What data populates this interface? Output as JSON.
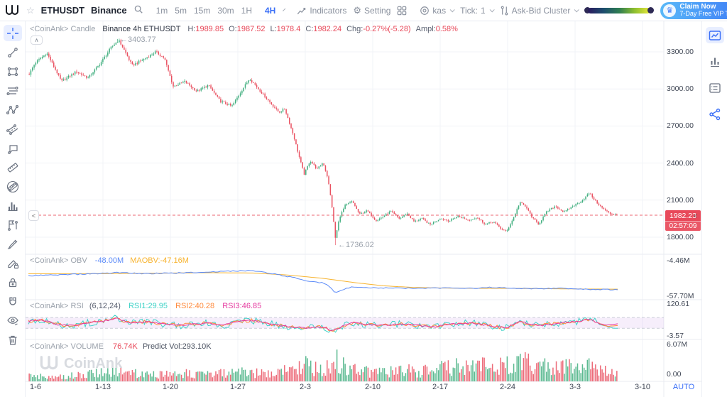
{
  "topbar": {
    "symbol": "ETHUSDT",
    "exchange": "Binance",
    "timeframes": [
      "1m",
      "5m",
      "15m",
      "30m",
      "1H"
    ],
    "active_timeframe": "4H",
    "indicators_label": "Indicators",
    "setting_label": "Setting",
    "overlay_symbol": "kas",
    "tick_label": "Tick:",
    "tick_value": "1",
    "cluster_label": "Ask-Bid Cluster",
    "claim_title": "Claim Now",
    "claim_subtitle": "7-Day Free VIP Trial"
  },
  "legend": {
    "source": "<CoinAnk> Candle",
    "market": "Binance 4h ETHUSDT",
    "items": [
      [
        "H:",
        "1989.85"
      ],
      [
        "O:",
        "1987.52"
      ],
      [
        "L:",
        "1978.4"
      ],
      [
        "C:",
        "1982.24"
      ],
      [
        "Chg:",
        "-0.27%(-5.28)"
      ],
      [
        "Ampl:",
        "0.58%"
      ]
    ]
  },
  "panes": {
    "obv": {
      "title": "<CoinAnk> OBV",
      "value": "-48.00M",
      "ma": "MAOBV:-47.16M",
      "axis": [
        "-4.46M",
        "-57.70M"
      ]
    },
    "rsi": {
      "title": "<CoinAnk> RSI",
      "params": "(6,12,24)",
      "rsi1": "RSI1:29.95",
      "rsi2": "RSI2:40.28",
      "rsi3": "RSI3:46.85",
      "axis": [
        "120.61",
        "-3.57"
      ]
    },
    "volume": {
      "title": "<CoinAnk> VOLUME",
      "value": "76.74K",
      "predict": "Predict Vol:293.10K",
      "axis": [
        "6.07M",
        "0.00"
      ]
    }
  },
  "price_axis": {
    "labels": [
      "3300.00",
      "3000.00",
      "2700.00",
      "2400.00",
      "2100.00",
      "1800.00"
    ],
    "current_price": "1982.23",
    "countdown": "02:57:09"
  },
  "time_axis": {
    "labels": [
      "1-6",
      "1-13",
      "1-20",
      "1-27",
      "2-3",
      "2-10",
      "2-17",
      "2-24",
      "3-3",
      "3-10"
    ],
    "auto": "AUTO"
  },
  "annotations": {
    "high": "←3403.77",
    "low": "←1736.02"
  },
  "watermark": "CoinAnk",
  "toolbar_left": [
    "crosshair",
    "trend-line",
    "rectangle",
    "parallel-lines",
    "xabcd-pattern",
    "parallel-channel",
    "callout",
    "ruler",
    "measure-off",
    "histogram",
    "flag-marker",
    "brush",
    "edit-lock",
    "lock",
    "magnet",
    "hide-drawings",
    "delete"
  ],
  "toolbar_right": [
    "chart-panel",
    "depth-bars",
    "order-list",
    "share"
  ],
  "colors": {
    "up": "#3fae7e",
    "down": "#e95060",
    "accent": "#3a6ff7",
    "obv": "#5b8af8",
    "maobv": "#f7b32f",
    "rsi1": "#3fd2c7",
    "rsi2": "#ff8a3c",
    "rsi3": "#e5399f",
    "price_line": "#e8495a"
  },
  "chart_data": {
    "type": "candlestick",
    "symbol": "ETHUSDT",
    "interval": "4h",
    "exchange": "Binance",
    "price_range": [
      1800,
      3300
    ],
    "marked_high": 3403.77,
    "marked_low": 1736.02,
    "last_price": 1982.23,
    "obv_range": [
      -4.46,
      -57.7
    ],
    "rsi_range": [
      120.61,
      -3.57
    ],
    "volume_range": [
      6.07,
      0
    ],
    "rsi_bands": [
      70,
      30
    ],
    "price_keyframes": [
      [
        0,
        3120
      ],
      [
        0.01,
        3210
      ],
      [
        0.03,
        3290
      ],
      [
        0.055,
        3060
      ],
      [
        0.08,
        3140
      ],
      [
        0.1,
        3090
      ],
      [
        0.12,
        3200
      ],
      [
        0.14,
        3340
      ],
      [
        0.152,
        3395
      ],
      [
        0.16,
        3330
      ],
      [
        0.175,
        3190
      ],
      [
        0.195,
        3240
      ],
      [
        0.215,
        3300
      ],
      [
        0.23,
        3250
      ],
      [
        0.245,
        3020
      ],
      [
        0.265,
        3060
      ],
      [
        0.285,
        2980
      ],
      [
        0.305,
        3030
      ],
      [
        0.325,
        2900
      ],
      [
        0.345,
        2860
      ],
      [
        0.36,
        2975
      ],
      [
        0.375,
        3085
      ],
      [
        0.39,
        3000
      ],
      [
        0.41,
        2890
      ],
      [
        0.425,
        2810
      ],
      [
        0.435,
        2840
      ],
      [
        0.45,
        2620
      ],
      [
        0.46,
        2440
      ],
      [
        0.468,
        2310
      ],
      [
        0.478,
        2420
      ],
      [
        0.49,
        2350
      ],
      [
        0.5,
        2405
      ],
      [
        0.508,
        2280
      ],
      [
        0.515,
        2060
      ],
      [
        0.521,
        1790
      ],
      [
        0.528,
        1960
      ],
      [
        0.538,
        2060
      ],
      [
        0.55,
        2090
      ],
      [
        0.562,
        1985
      ],
      [
        0.575,
        2015
      ],
      [
        0.59,
        1935
      ],
      [
        0.602,
        1965
      ],
      [
        0.615,
        2010
      ],
      [
        0.63,
        1950
      ],
      [
        0.643,
        1992
      ],
      [
        0.655,
        1925
      ],
      [
        0.668,
        1952
      ],
      [
        0.682,
        1902
      ],
      [
        0.7,
        1952
      ],
      [
        0.715,
        1932
      ],
      [
        0.73,
        1972
      ],
      [
        0.748,
        1935
      ],
      [
        0.762,
        1962
      ],
      [
        0.776,
        1905
      ],
      [
        0.79,
        1925
      ],
      [
        0.802,
        1872
      ],
      [
        0.812,
        1842
      ],
      [
        0.825,
        1965
      ],
      [
        0.835,
        2085
      ],
      [
        0.846,
        2040
      ],
      [
        0.857,
        1952
      ],
      [
        0.867,
        1905
      ],
      [
        0.88,
        2002
      ],
      [
        0.895,
        2052
      ],
      [
        0.91,
        2002
      ],
      [
        0.925,
        2052
      ],
      [
        0.94,
        2092
      ],
      [
        0.953,
        2158
      ],
      [
        0.965,
        2085
      ],
      [
        0.976,
        2032
      ],
      [
        0.988,
        1992
      ],
      [
        1,
        1982
      ]
    ],
    "volume_envelope": [
      [
        0,
        0.25
      ],
      [
        0.05,
        0.2
      ],
      [
        0.1,
        0.3
      ],
      [
        0.15,
        0.45
      ],
      [
        0.2,
        0.3
      ],
      [
        0.25,
        0.35
      ],
      [
        0.3,
        0.3
      ],
      [
        0.35,
        0.4
      ],
      [
        0.4,
        0.35
      ],
      [
        0.44,
        0.55
      ],
      [
        0.46,
        0.8
      ],
      [
        0.48,
        0.6
      ],
      [
        0.5,
        0.55
      ],
      [
        0.515,
        0.75
      ],
      [
        0.525,
        1.0
      ],
      [
        0.54,
        0.6
      ],
      [
        0.56,
        0.45
      ],
      [
        0.6,
        0.4
      ],
      [
        0.63,
        0.5
      ],
      [
        0.66,
        0.45
      ],
      [
        0.7,
        0.55
      ],
      [
        0.73,
        0.65
      ],
      [
        0.76,
        0.7
      ],
      [
        0.79,
        0.6
      ],
      [
        0.82,
        0.75
      ],
      [
        0.85,
        0.8
      ],
      [
        0.88,
        0.65
      ],
      [
        0.91,
        0.7
      ],
      [
        0.94,
        0.75
      ],
      [
        0.97,
        0.5
      ],
      [
        1,
        0.3
      ]
    ],
    "obv_keyframes": [
      [
        0,
        -27
      ],
      [
        0.05,
        -25.5
      ],
      [
        0.1,
        -24.5
      ],
      [
        0.15,
        -22.5
      ],
      [
        0.2,
        -24
      ],
      [
        0.25,
        -23
      ],
      [
        0.3,
        -21.5
      ],
      [
        0.35,
        -20
      ],
      [
        0.38,
        -19
      ],
      [
        0.42,
        -25
      ],
      [
        0.45,
        -30
      ],
      [
        0.47,
        -34
      ],
      [
        0.5,
        -38
      ],
      [
        0.512,
        -44
      ],
      [
        0.521,
        -53
      ],
      [
        0.53,
        -49
      ],
      [
        0.55,
        -43.5
      ],
      [
        0.58,
        -45
      ],
      [
        0.62,
        -45.5
      ],
      [
        0.66,
        -46
      ],
      [
        0.7,
        -45.5
      ],
      [
        0.74,
        -46.5
      ],
      [
        0.78,
        -44.5
      ],
      [
        0.82,
        -45.5
      ],
      [
        0.86,
        -46.5
      ],
      [
        0.9,
        -46
      ],
      [
        0.93,
        -47
      ],
      [
        0.96,
        -47.5
      ],
      [
        1,
        -48
      ]
    ],
    "maobv_keyframes": [
      [
        0,
        -24
      ],
      [
        0.1,
        -24
      ],
      [
        0.2,
        -23.5
      ],
      [
        0.3,
        -22.5
      ],
      [
        0.38,
        -23
      ],
      [
        0.44,
        -26
      ],
      [
        0.5,
        -31
      ],
      [
        0.55,
        -37
      ],
      [
        0.6,
        -42
      ],
      [
        0.65,
        -44.5
      ],
      [
        0.7,
        -45.5
      ],
      [
        0.76,
        -46
      ],
      [
        0.82,
        -46
      ],
      [
        0.88,
        -46.5
      ],
      [
        0.94,
        -47
      ],
      [
        1,
        -47.16
      ]
    ],
    "rsi_keyframes": [
      [
        0,
        55
      ],
      [
        0.02,
        63
      ],
      [
        0.05,
        44
      ],
      [
        0.08,
        40
      ],
      [
        0.1,
        50
      ],
      [
        0.13,
        58
      ],
      [
        0.15,
        68
      ],
      [
        0.17,
        50
      ],
      [
        0.2,
        55
      ],
      [
        0.23,
        46
      ],
      [
        0.26,
        41
      ],
      [
        0.3,
        50
      ],
      [
        0.33,
        42
      ],
      [
        0.36,
        55
      ],
      [
        0.38,
        60
      ],
      [
        0.41,
        46
      ],
      [
        0.44,
        37
      ],
      [
        0.47,
        32
      ],
      [
        0.5,
        36
      ],
      [
        0.515,
        22
      ],
      [
        0.53,
        34
      ],
      [
        0.55,
        50
      ],
      [
        0.57,
        46
      ],
      [
        0.6,
        41
      ],
      [
        0.63,
        46
      ],
      [
        0.66,
        41
      ],
      [
        0.69,
        36
      ],
      [
        0.72,
        46
      ],
      [
        0.75,
        50
      ],
      [
        0.78,
        41
      ],
      [
        0.81,
        31
      ],
      [
        0.835,
        56
      ],
      [
        0.85,
        46
      ],
      [
        0.87,
        41
      ],
      [
        0.9,
        50
      ],
      [
        0.93,
        55
      ],
      [
        0.955,
        64
      ],
      [
        0.97,
        46
      ],
      [
        0.985,
        36
      ],
      [
        1,
        33
      ]
    ],
    "rsi_last": {
      "rsi1": 29.95,
      "rsi2": 40.28,
      "rsi3": 46.85
    }
  }
}
